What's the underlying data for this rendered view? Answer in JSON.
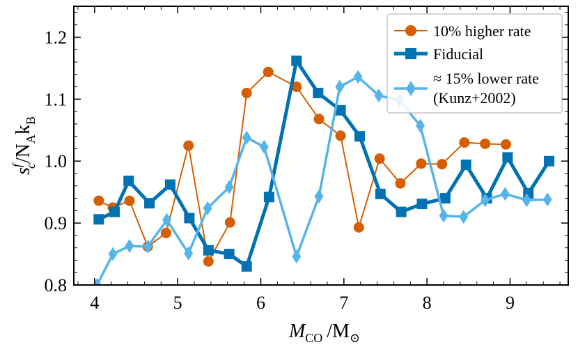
{
  "chart_data": {
    "type": "line",
    "title": "",
    "xlabel_main": "M",
    "xlabel_sub": "CO",
    "xlabel_unit": "/M",
    "xlabel_unit_sub": "⊙",
    "ylabel_main": "s",
    "ylabel_sup": "f",
    "ylabel_sub": "c",
    "ylabel_rest": "/N",
    "ylabel_sub2": "A",
    "ylabel_k": "k",
    "ylabel_sub3": "B",
    "xlim": [
      3.75,
      9.7
    ],
    "ylim": [
      0.8,
      1.25
    ],
    "xticks": [
      4,
      5,
      6,
      7,
      8,
      9
    ],
    "xtick_labels": [
      "4",
      "5",
      "6",
      "7",
      "8",
      "9"
    ],
    "yticks": [
      0.8,
      0.9,
      1.0,
      1.1,
      1.2
    ],
    "ytick_labels": [
      "0.8",
      "0.9",
      "1.0",
      "1.1",
      "1.2"
    ],
    "legend_position": "top-right",
    "series": [
      {
        "name": "10% higher rate",
        "color": "#d55e00",
        "marker": "circle",
        "x": [
          4.05,
          4.22,
          4.42,
          4.64,
          4.86,
          5.13,
          5.37,
          5.63,
          5.83,
          6.09,
          6.43,
          6.7,
          6.96,
          7.18,
          7.43,
          7.68,
          7.93,
          8.18,
          8.45,
          8.7,
          8.95
        ],
        "y": [
          0.936,
          0.925,
          0.936,
          0.862,
          0.884,
          1.025,
          0.838,
          0.901,
          1.11,
          1.144,
          1.12,
          1.068,
          1.041,
          0.893,
          1.004,
          0.964,
          0.996,
          0.995,
          1.03,
          1.028,
          1.027
        ]
      },
      {
        "name": "Fiducial",
        "color": "#0072b2",
        "marker": "square",
        "x": [
          4.05,
          4.24,
          4.41,
          4.66,
          4.91,
          5.14,
          5.37,
          5.62,
          5.83,
          6.1,
          6.43,
          6.69,
          6.96,
          7.19,
          7.44,
          7.69,
          7.94,
          8.22,
          8.47,
          8.72,
          8.97,
          9.22,
          9.47
        ],
        "y": [
          0.906,
          0.918,
          0.968,
          0.932,
          0.962,
          0.908,
          0.856,
          0.85,
          0.83,
          0.942,
          1.162,
          1.11,
          1.082,
          1.04,
          0.947,
          0.918,
          0.931,
          0.94,
          0.994,
          0.94,
          1.006,
          0.948,
          1.0
        ]
      },
      {
        "name": "≈ 15% lower rate",
        "name_line2": "(Kunz+2002)",
        "color": "#56b4e9",
        "marker": "diamond",
        "x": [
          4.03,
          4.22,
          4.42,
          4.64,
          4.87,
          5.13,
          5.36,
          5.62,
          5.83,
          6.04,
          6.43,
          6.7,
          6.95,
          7.17,
          7.42,
          7.67,
          7.92,
          8.2,
          8.44,
          8.7,
          8.94,
          9.2,
          9.45
        ],
        "y": [
          0.8,
          0.85,
          0.863,
          0.862,
          0.905,
          0.851,
          0.924,
          0.958,
          1.038,
          1.023,
          0.846,
          0.943,
          1.12,
          1.136,
          1.106,
          1.098,
          1.057,
          0.912,
          0.91,
          0.937,
          0.947,
          0.937,
          0.938
        ]
      }
    ]
  }
}
